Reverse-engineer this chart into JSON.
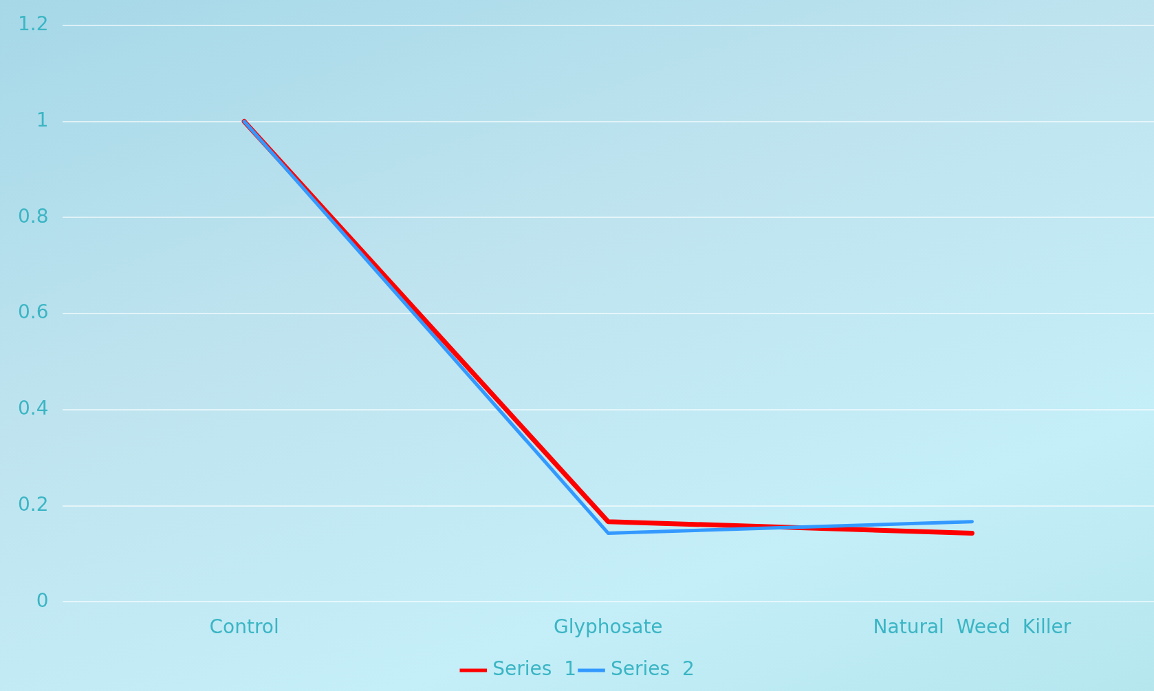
{
  "chart_data": {
    "type": "line",
    "categories": [
      "Control",
      "Glyphosate",
      "Natural  Weed  Killer"
    ],
    "series": [
      {
        "name": "Series  1",
        "color": "#ff0000",
        "values": [
          1,
          0.167,
          0.143
        ]
      },
      {
        "name": "Series  2",
        "color": "#3399ff",
        "values": [
          1,
          0.143,
          0.167
        ]
      }
    ],
    "ylim": [
      0,
      1.2
    ],
    "yticks": [
      0,
      0.2,
      0.4,
      0.6,
      0.8,
      1,
      1.2
    ],
    "grid": "y",
    "legend": "bottom",
    "marker": "none",
    "line_style": "solid"
  }
}
